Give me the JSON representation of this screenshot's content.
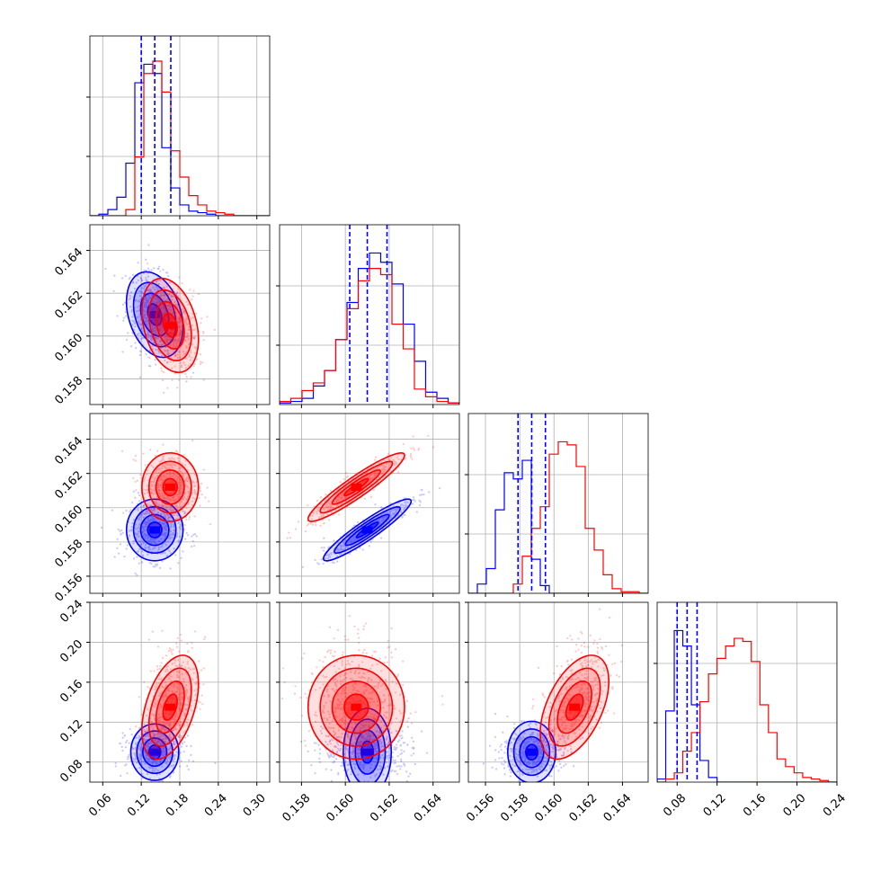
{
  "chart_data": {
    "type": "corner",
    "parameters": 4,
    "grid": true,
    "colors": {
      "blue": "#0000ff",
      "red": "#ff0000",
      "grid": "#b0b0b0"
    },
    "series": [
      {
        "color": "blue",
        "means": [
          0.141,
          0.161,
          0.1587,
          0.09
        ],
        "quantiles": [
          [
            0.12,
            0.141,
            0.166
          ],
          [
            0.1602,
            0.161,
            0.1619
          ],
          [
            0.1579,
            0.1587,
            0.1595
          ],
          [
            0.08,
            0.09,
            0.1
          ]
        ],
        "hist": [
          [
            0,
            0.01,
            0.04,
            0.12,
            0.34,
            0.86,
            0.98,
            0.92,
            0.44,
            0.18,
            0.07,
            0.03,
            0.02,
            0.01,
            0,
            0,
            0,
            0,
            0,
            0
          ],
          [
            0.01,
            0.02,
            0.04,
            0.12,
            0.22,
            0.42,
            0.66,
            0.88,
            0.98,
            0.92,
            0.78,
            0.52,
            0.28,
            0.08,
            0.04,
            0.01
          ],
          [
            0,
            0.06,
            0.16,
            0.54,
            0.78,
            0.74,
            0.86,
            0.22,
            0.05,
            0,
            0,
            0,
            0,
            0,
            0,
            0,
            0,
            0,
            0,
            0
          ],
          [
            0.02,
            0.46,
            0.98,
            0.88,
            0.5,
            0.14,
            0.03,
            0,
            0,
            0,
            0,
            0,
            0,
            0,
            0,
            0,
            0,
            0,
            0,
            0,
            0
          ]
        ]
      },
      {
        "color": "red",
        "means": [
          0.165,
          0.1605,
          0.1612,
          0.135
        ],
        "hist": [
          [
            0,
            0,
            0,
            0,
            0.04,
            0.38,
            0.92,
            1.0,
            0.8,
            0.42,
            0.25,
            0.13,
            0.07,
            0.03,
            0.02,
            0.01,
            0,
            0,
            0,
            0
          ],
          [
            0.02,
            0.04,
            0.09,
            0.14,
            0.22,
            0.42,
            0.62,
            0.8,
            0.88,
            0.84,
            0.52,
            0.36,
            0.1,
            0.05,
            0.02,
            0.01
          ],
          [
            0,
            0,
            0,
            0,
            0,
            0.06,
            0.24,
            0.42,
            0.56,
            0.9,
            0.98,
            0.96,
            0.82,
            0.42,
            0.28,
            0.12,
            0.03,
            0.01,
            0.01,
            0
          ],
          [
            0,
            0.02,
            0.06,
            0.2,
            0.32,
            0.52,
            0.7,
            0.8,
            0.88,
            0.93,
            0.91,
            0.78,
            0.5,
            0.32,
            0.15,
            0.1,
            0.06,
            0.03,
            0.02,
            0.01,
            0
          ]
        ]
      }
    ],
    "x_axes": [
      {
        "min": 0.04,
        "max": 0.32,
        "ticks": [
          0.06,
          0.12,
          0.18,
          0.24,
          0.3
        ],
        "labels": [
          "0.06",
          "0.12",
          "0.18",
          "0.24",
          "0.30"
        ]
      },
      {
        "min": 0.157,
        "max": 0.1652,
        "ticks": [
          0.158,
          0.16,
          0.162,
          0.164
        ],
        "labels": [
          "0.158",
          "0.160",
          "0.162",
          "0.164"
        ]
      },
      {
        "min": 0.155,
        "max": 0.1655,
        "ticks": [
          0.156,
          0.158,
          0.16,
          0.162,
          0.164
        ],
        "labels": [
          "0.156",
          "0.158",
          "0.160",
          "0.162",
          "0.164"
        ]
      },
      {
        "min": 0.06,
        "max": 0.24,
        "ticks": [
          0.08,
          0.12,
          0.16,
          0.2,
          0.24
        ],
        "labels": [
          "0.08",
          "0.12",
          "0.16",
          "0.20",
          "0.24"
        ]
      }
    ],
    "y_axes": [
      null,
      {
        "min": 0.1568,
        "max": 0.1652,
        "ticks": [
          0.158,
          0.16,
          0.162,
          0.164
        ],
        "labels": [
          "0.158",
          "0.160",
          "0.162",
          "0.164"
        ]
      },
      {
        "min": 0.155,
        "max": 0.1655,
        "ticks": [
          0.156,
          0.158,
          0.16,
          0.162,
          0.164
        ],
        "labels": [
          "0.156",
          "0.158",
          "0.160",
          "0.162",
          "0.164"
        ]
      },
      {
        "min": 0.06,
        "max": 0.24,
        "ticks": [
          0.08,
          0.12,
          0.16,
          0.2,
          0.24
        ],
        "labels": [
          "0.08",
          "0.12",
          "0.16",
          "0.20",
          "0.24"
        ]
      }
    ],
    "correlations": {
      "0-1": {
        "blue": -0.3,
        "red": -0.3
      },
      "0-2": {
        "blue": 0.0,
        "red": 0.0
      },
      "1-2": {
        "blue": 0.93,
        "red": 0.93
      },
      "0-3": {
        "blue": 0.0,
        "red": 0.45
      },
      "1-3": {
        "blue": 0.0,
        "red": 0.0
      },
      "2-3": {
        "blue": 0.0,
        "red": 0.5
      }
    },
    "stds": {
      "blue": [
        0.022,
        0.001,
        0.0009,
        0.012
      ],
      "red": [
        0.022,
        0.0011,
        0.001,
        0.026
      ]
    }
  }
}
